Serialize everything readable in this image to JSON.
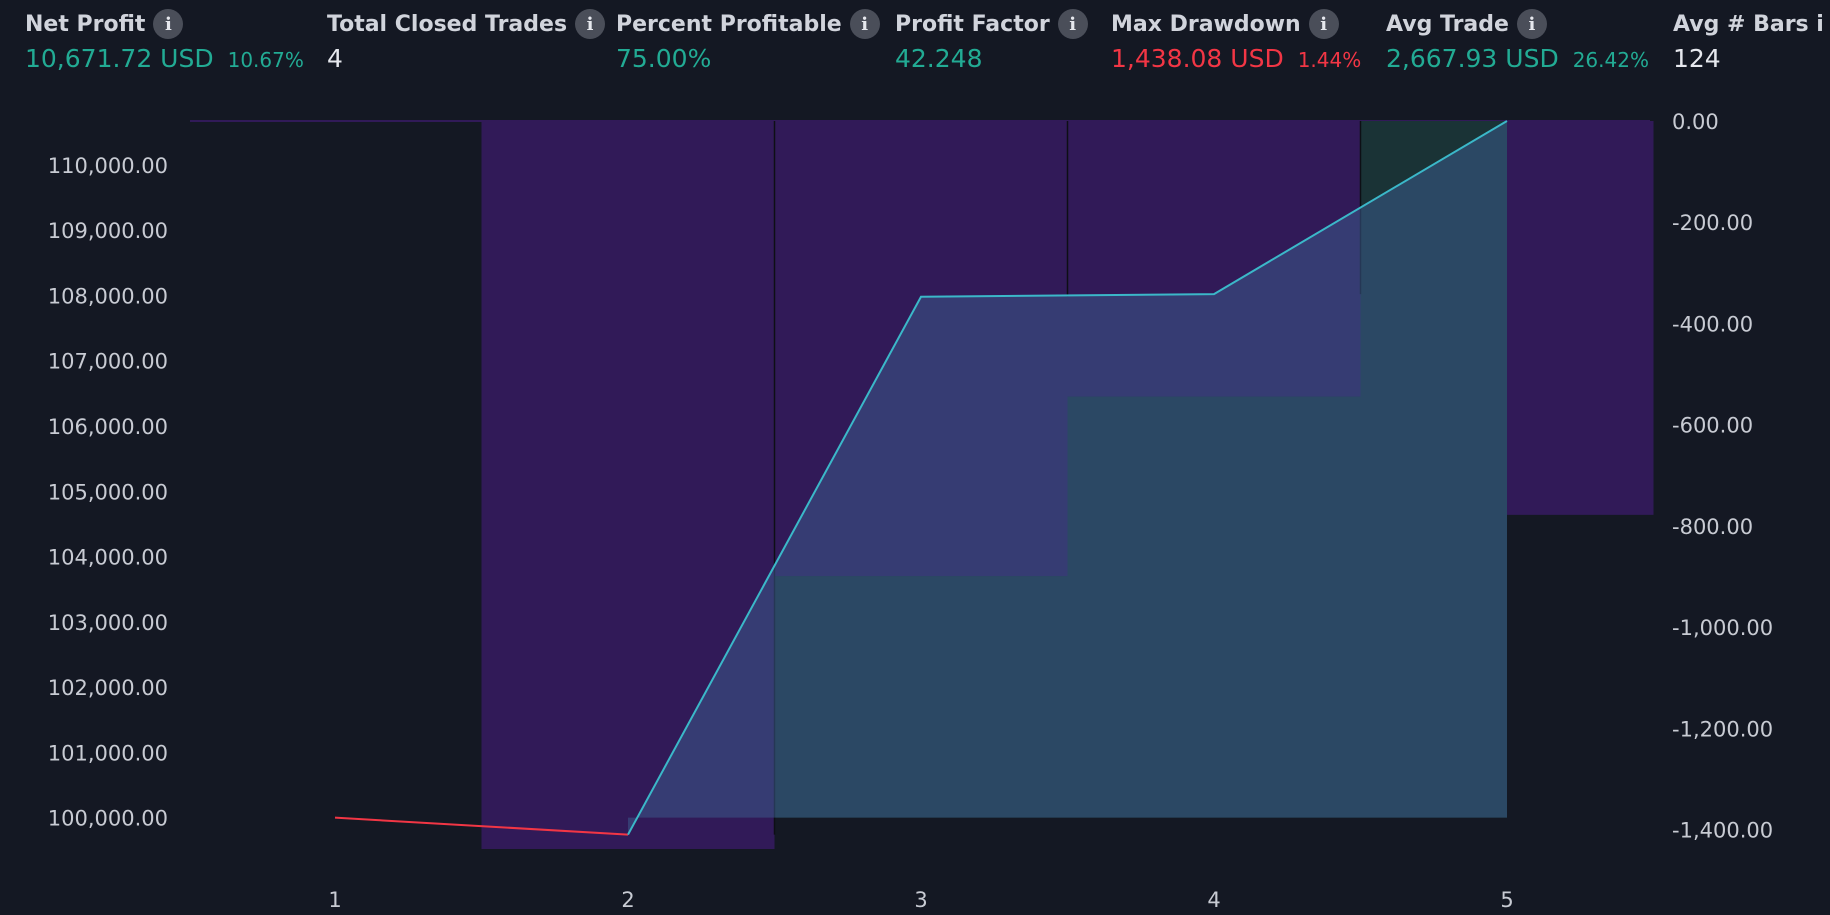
{
  "stats": [
    {
      "title": "Net Profit",
      "value": "10,671.72 USD",
      "pct": "10.67%",
      "color": "green"
    },
    {
      "title": "Total Closed Trades",
      "value": "4",
      "pct": "",
      "color": "white"
    },
    {
      "title": "Percent Profitable",
      "value": "75.00%",
      "pct": "",
      "color": "green"
    },
    {
      "title": "Profit Factor",
      "value": "42.248",
      "pct": "",
      "color": "green"
    },
    {
      "title": "Max Drawdown",
      "value": "1,438.08 USD",
      "pct": "1.44%",
      "color": "red"
    },
    {
      "title": "Avg Trade",
      "value": "2,667.93 USD",
      "pct": "26.42%",
      "color": "green"
    },
    {
      "title": "Avg # Bars i",
      "value": "124",
      "pct": "",
      "color": "white"
    }
  ],
  "info_icon_glyph": "i",
  "colors": {
    "background": "#141823",
    "drawdown_bar": "#311a58",
    "profit_bar": "#1a3336",
    "equity_line": "#3bb8c9",
    "equity_line_loss": "#f23645",
    "equity_fill": "#3a5a8a",
    "positive": "#22ab94",
    "negative": "#f23645"
  },
  "chart_data": {
    "type": "line",
    "x": [
      1,
      2,
      3,
      4,
      5
    ],
    "equity": {
      "values": [
        100000,
        99740,
        107980,
        108020,
        110671.72
      ]
    },
    "drawdown_bars": {
      "x": [
        2,
        3,
        4,
        5
      ],
      "values": [
        -1438.08,
        0,
        0,
        -778
      ]
    },
    "profit_bars": {
      "x": [
        3,
        4,
        5
      ],
      "values": [
        103700,
        106450,
        110671.72
      ]
    },
    "left_axis": {
      "ticks": [
        "110,000.00",
        "109,000.00",
        "108,000.00",
        "107,000.00",
        "106,000.00",
        "105,000.00",
        "104,000.00",
        "103,000.00",
        "102,000.00",
        "101,000.00",
        "100,000.00"
      ],
      "values": [
        110000,
        109000,
        108000,
        107000,
        106000,
        105000,
        104000,
        103000,
        102000,
        101000,
        100000
      ],
      "range": [
        99520,
        110671.72
      ]
    },
    "right_axis": {
      "ticks": [
        "0.00",
        "-200.00",
        "-400.00",
        "-600.00",
        "-800.00",
        "-1,000.00",
        "-1,200.00",
        "-1,400.00"
      ],
      "values": [
        0,
        -200,
        -400,
        -600,
        -800,
        -1000,
        -1200,
        -1400
      ],
      "range": [
        -1438.08,
        0
      ]
    },
    "x_ticks": [
      "1",
      "2",
      "3",
      "4",
      "5"
    ]
  }
}
